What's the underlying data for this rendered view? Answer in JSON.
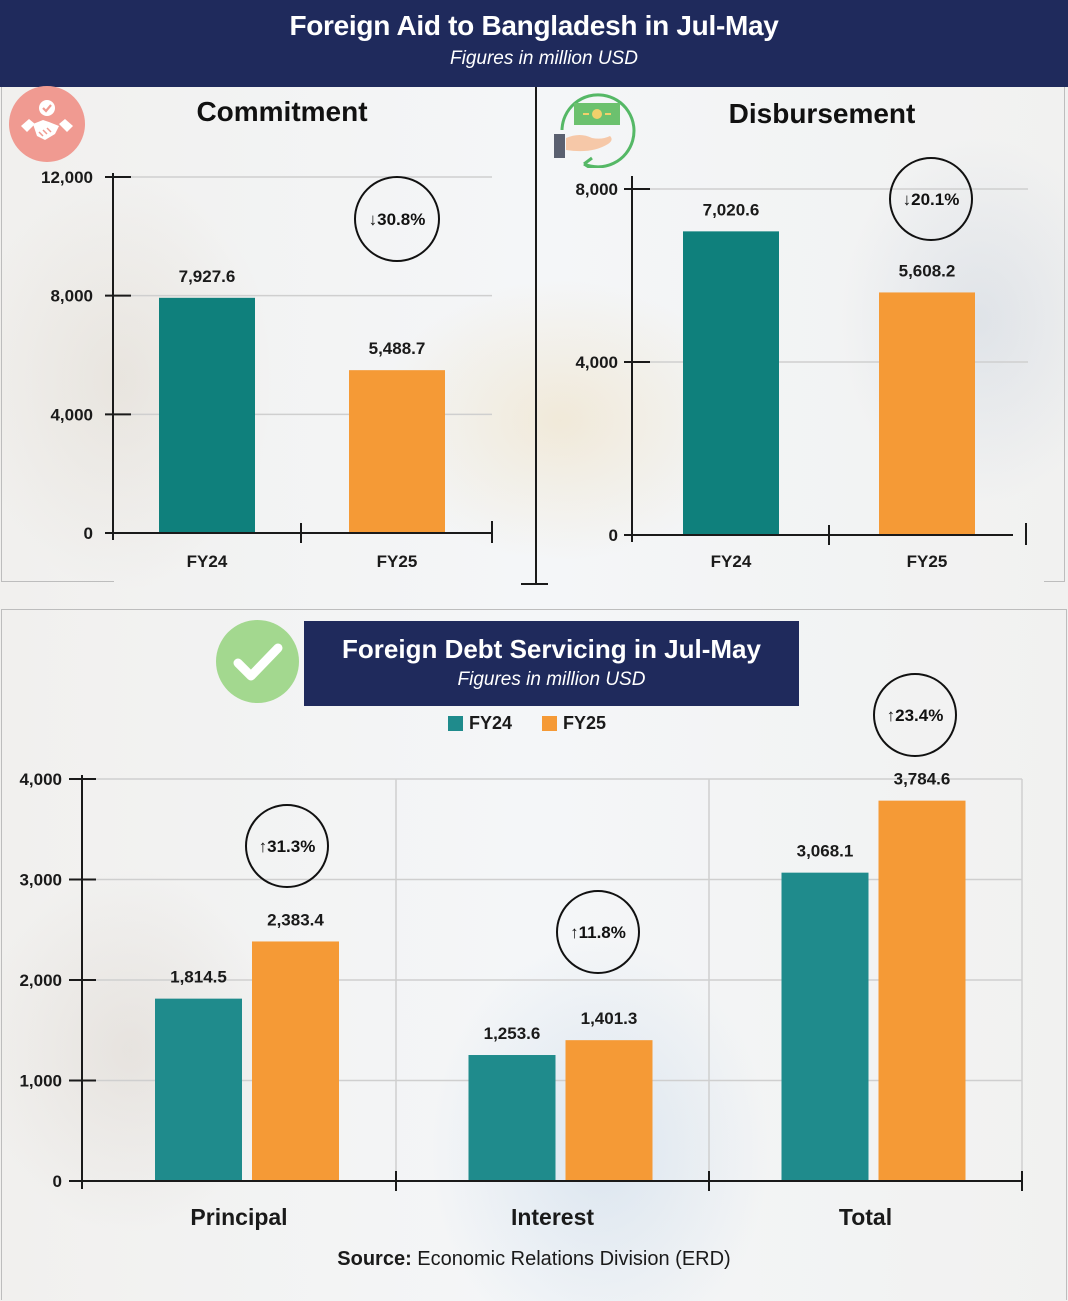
{
  "header": {
    "title": "Foreign Aid to Bangladesh in Jul-May",
    "subtitle": "Figures in million USD"
  },
  "icons": {
    "commitment": "handshake-icon",
    "disbursement": "money-hand-icon",
    "debt": "checkmark-icon"
  },
  "colors": {
    "fy24_aid": "#0f807c",
    "fy24_debt": "#1f8b8c",
    "fy25": "#f59a36",
    "header_bg": "#1f2a5c",
    "handshake_bg": "#f09a91",
    "check_bg": "#a3d88f"
  },
  "debt_section": {
    "title": "Foreign Debt Servicing in Jul-May",
    "subtitle": "Figures in million USD"
  },
  "source": {
    "label": "Source:",
    "text": " Economic Relations Division (ERD)"
  },
  "chart_data": [
    {
      "type": "bar",
      "title": "Commitment",
      "categories": [
        "FY24",
        "FY25"
      ],
      "values": [
        7927.6,
        5488.7
      ],
      "value_labels": [
        "7,927.6",
        "5,488.7"
      ],
      "ylim": [
        0,
        12000
      ],
      "yticks": [
        0,
        4000,
        8000,
        12000
      ],
      "ytick_labels": [
        "0",
        "4,000",
        "8,000",
        "12,000"
      ],
      "change_badge": "↓30.8%",
      "xlabel": "",
      "ylabel": "",
      "grid": true
    },
    {
      "type": "bar",
      "title": "Disbursement",
      "categories": [
        "FY24",
        "FY25"
      ],
      "values": [
        7020.6,
        5608.2
      ],
      "value_labels": [
        "7,020.6",
        "5,608.2"
      ],
      "ylim": [
        0,
        8000
      ],
      "yticks": [
        0,
        4000,
        8000
      ],
      "ytick_labels": [
        "0",
        "4,000",
        "8,000"
      ],
      "change_badge": "↓20.1%",
      "xlabel": "",
      "ylabel": "",
      "grid": true
    },
    {
      "type": "bar",
      "title": "Foreign Debt Servicing in Jul-May",
      "categories": [
        "Principal",
        "Interest",
        "Total"
      ],
      "series": [
        {
          "name": "FY24",
          "values": [
            1814.5,
            1253.6,
            3068.1
          ],
          "value_labels": [
            "1,814.5",
            "1,253.6",
            "3,068.1"
          ]
        },
        {
          "name": "FY25",
          "values": [
            2383.4,
            1401.3,
            3784.6
          ],
          "value_labels": [
            "2,383.4",
            "1,401.3",
            "3,784.6"
          ]
        }
      ],
      "change_badges": [
        "↑31.3%",
        "↑11.8%",
        "↑23.4%"
      ],
      "ylim": [
        0,
        4000
      ],
      "yticks": [
        0,
        1000,
        2000,
        3000,
        4000
      ],
      "ytick_labels": [
        "0",
        "1,000",
        "2,000",
        "3,000",
        "4,000"
      ],
      "legend": [
        "FY24",
        "FY25"
      ],
      "legend_position": "top-center",
      "xlabel": "",
      "ylabel": "",
      "grid": true
    }
  ]
}
